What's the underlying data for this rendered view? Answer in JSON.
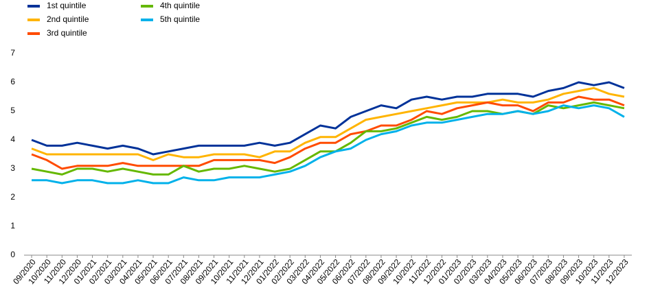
{
  "chart_data": {
    "type": "line",
    "categories": [
      "09/2020",
      "10/2020",
      "11/2020",
      "12/2020",
      "01/2021",
      "02/2021",
      "03/2021",
      "04/2021",
      "05/2021",
      "06/2021",
      "07/2021",
      "08/2021",
      "09/2021",
      "10/2021",
      "11/2021",
      "12/2021",
      "01/2022",
      "02/2022",
      "03/2022",
      "04/2022",
      "05/2022",
      "06/2022",
      "07/2022",
      "08/2022",
      "09/2022",
      "10/2022",
      "11/2022",
      "12/2022",
      "01/2023",
      "02/2023",
      "03/2023",
      "04/2023",
      "05/2023",
      "06/2023",
      "07/2023",
      "08/2023",
      "09/2023",
      "10/2023",
      "11/2023",
      "12/2023"
    ],
    "series": [
      {
        "name": "1st quintile",
        "color": "#003299",
        "values": [
          4.0,
          3.8,
          3.8,
          3.9,
          3.8,
          3.7,
          3.8,
          3.7,
          3.5,
          3.6,
          3.7,
          3.8,
          3.8,
          3.8,
          3.8,
          3.9,
          3.8,
          3.9,
          4.2,
          4.5,
          4.4,
          4.8,
          5.0,
          5.2,
          5.1,
          5.4,
          5.5,
          5.4,
          5.5,
          5.5,
          5.6,
          5.6,
          5.6,
          5.5,
          5.7,
          5.8,
          6.0,
          5.9,
          6.0,
          5.8
        ]
      },
      {
        "name": "2nd quintile",
        "color": "#ffb400",
        "values": [
          3.7,
          3.5,
          3.5,
          3.5,
          3.5,
          3.5,
          3.5,
          3.5,
          3.3,
          3.5,
          3.4,
          3.4,
          3.5,
          3.5,
          3.5,
          3.4,
          3.6,
          3.6,
          3.9,
          4.1,
          4.1,
          4.4,
          4.7,
          4.8,
          4.9,
          5.0,
          5.1,
          5.2,
          5.3,
          5.3,
          5.3,
          5.4,
          5.3,
          5.3,
          5.4,
          5.6,
          5.7,
          5.8,
          5.6,
          5.5
        ]
      },
      {
        "name": "3rd quintile",
        "color": "#ff4b00",
        "values": [
          3.5,
          3.3,
          3.0,
          3.1,
          3.1,
          3.1,
          3.2,
          3.1,
          3.1,
          3.1,
          3.1,
          3.1,
          3.3,
          3.3,
          3.3,
          3.3,
          3.2,
          3.4,
          3.7,
          3.9,
          3.9,
          4.2,
          4.3,
          4.5,
          4.5,
          4.7,
          5.0,
          4.9,
          5.1,
          5.2,
          5.3,
          5.2,
          5.2,
          5.0,
          5.3,
          5.3,
          5.5,
          5.4,
          5.4,
          5.2
        ]
      },
      {
        "name": "4th quintile",
        "color": "#65b800",
        "values": [
          3.0,
          2.9,
          2.8,
          3.0,
          3.0,
          2.9,
          3.0,
          2.9,
          2.8,
          2.8,
          3.1,
          2.9,
          3.0,
          3.0,
          3.1,
          3.0,
          2.9,
          3.0,
          3.3,
          3.6,
          3.6,
          3.9,
          4.3,
          4.3,
          4.4,
          4.6,
          4.8,
          4.7,
          4.8,
          5.0,
          5.0,
          4.9,
          5.0,
          4.9,
          5.2,
          5.1,
          5.2,
          5.3,
          5.2,
          5.1
        ]
      },
      {
        "name": "5th quintile",
        "color": "#00b1ea",
        "values": [
          2.6,
          2.6,
          2.5,
          2.6,
          2.6,
          2.5,
          2.5,
          2.6,
          2.5,
          2.5,
          2.7,
          2.6,
          2.6,
          2.7,
          2.7,
          2.7,
          2.8,
          2.9,
          3.1,
          3.4,
          3.6,
          3.7,
          4.0,
          4.2,
          4.3,
          4.5,
          4.6,
          4.6,
          4.7,
          4.8,
          4.9,
          4.9,
          5.0,
          4.9,
          5.0,
          5.2,
          5.1,
          5.2,
          5.1,
          4.8
        ]
      }
    ],
    "ylim": [
      0,
      7
    ],
    "yticks": [
      0,
      1,
      2,
      3,
      4,
      5,
      6,
      7
    ],
    "grid": false
  }
}
